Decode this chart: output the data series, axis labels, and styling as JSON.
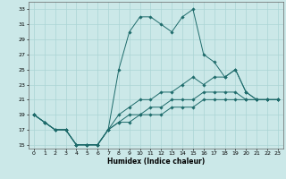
{
  "xlabel": "Humidex (Indice chaleur)",
  "bg_color": "#cbe8e8",
  "grid_color": "#aad4d4",
  "line_color": "#1e6b6b",
  "xlim": [
    -0.5,
    23.5
  ],
  "ylim": [
    14.5,
    34
  ],
  "yticks": [
    15,
    17,
    19,
    21,
    23,
    25,
    27,
    29,
    31,
    33
  ],
  "xticks": [
    0,
    1,
    2,
    3,
    4,
    5,
    6,
    7,
    8,
    9,
    10,
    11,
    12,
    13,
    14,
    15,
    16,
    17,
    18,
    19,
    20,
    21,
    22,
    23
  ],
  "series": {
    "line1": {
      "x": [
        0,
        1,
        2,
        3,
        4,
        5,
        6,
        7,
        8,
        9,
        10,
        11,
        12,
        13,
        14,
        15,
        16,
        17,
        18,
        19,
        20,
        21,
        22,
        23
      ],
      "y": [
        19,
        18,
        17,
        17,
        15,
        15,
        15,
        17,
        25,
        30,
        32,
        32,
        31,
        30,
        32,
        33,
        27,
        26,
        24,
        25,
        22,
        21,
        21,
        21
      ]
    },
    "line2": {
      "x": [
        0,
        1,
        2,
        3,
        4,
        5,
        6,
        7,
        8,
        9,
        10,
        11,
        12,
        13,
        14,
        15,
        16,
        17,
        18,
        19,
        20,
        21,
        22,
        23
      ],
      "y": [
        19,
        18,
        17,
        17,
        15,
        15,
        15,
        17,
        19,
        20,
        21,
        21,
        22,
        22,
        23,
        24,
        23,
        24,
        24,
        25,
        22,
        21,
        21,
        21
      ]
    },
    "line3": {
      "x": [
        0,
        1,
        2,
        3,
        4,
        5,
        6,
        7,
        8,
        9,
        10,
        11,
        12,
        13,
        14,
        15,
        16,
        17,
        18,
        19,
        20,
        21,
        22,
        23
      ],
      "y": [
        19,
        18,
        17,
        17,
        15,
        15,
        15,
        17,
        18,
        19,
        19,
        20,
        20,
        21,
        21,
        21,
        22,
        22,
        22,
        22,
        21,
        21,
        21,
        21
      ]
    },
    "line4": {
      "x": [
        0,
        1,
        2,
        3,
        4,
        5,
        6,
        7,
        8,
        9,
        10,
        11,
        12,
        13,
        14,
        15,
        16,
        17,
        18,
        19,
        20,
        21,
        22,
        23
      ],
      "y": [
        19,
        18,
        17,
        17,
        15,
        15,
        15,
        17,
        18,
        18,
        19,
        19,
        19,
        20,
        20,
        20,
        21,
        21,
        21,
        21,
        21,
        21,
        21,
        21
      ]
    }
  }
}
